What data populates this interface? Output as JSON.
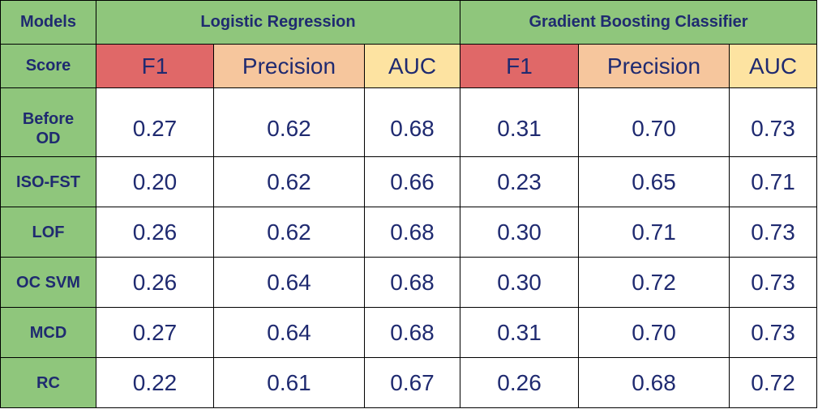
{
  "corner_label": "Models",
  "score_label": "Score",
  "groups": [
    "Logistic Regression",
    "Gradient Boosting Classifier"
  ],
  "metrics": [
    "F1",
    "Precision",
    "AUC"
  ],
  "colors": {
    "label_green": "#8fc67c",
    "f1_red": "#e06868",
    "precision_orange": "#f6c69d",
    "auc_yellow": "#fde3a1",
    "text_navy": "#1f2a70"
  },
  "chart_data": {
    "type": "table",
    "columns": [
      "Models",
      "LR F1",
      "LR Precision",
      "LR AUC",
      "GBC F1",
      "GBC Precision",
      "GBC AUC"
    ],
    "rows": [
      {
        "model": "Before OD",
        "values": [
          "0.27",
          "0.62",
          "0.68",
          "0.31",
          "0.70",
          "0.73"
        ]
      },
      {
        "model": "ISO-FST",
        "values": [
          "0.20",
          "0.62",
          "0.66",
          "0.23",
          "0.65",
          "0.71"
        ]
      },
      {
        "model": "LOF",
        "values": [
          "0.26",
          "0.62",
          "0.68",
          "0.30",
          "0.71",
          "0.73"
        ]
      },
      {
        "model": "OC SVM",
        "values": [
          "0.26",
          "0.64",
          "0.68",
          "0.30",
          "0.72",
          "0.73"
        ]
      },
      {
        "model": "MCD",
        "values": [
          "0.27",
          "0.64",
          "0.68",
          "0.31",
          "0.70",
          "0.73"
        ]
      },
      {
        "model": "RC",
        "values": [
          "0.22",
          "0.61",
          "0.67",
          "0.26",
          "0.68",
          "0.72"
        ]
      }
    ]
  }
}
